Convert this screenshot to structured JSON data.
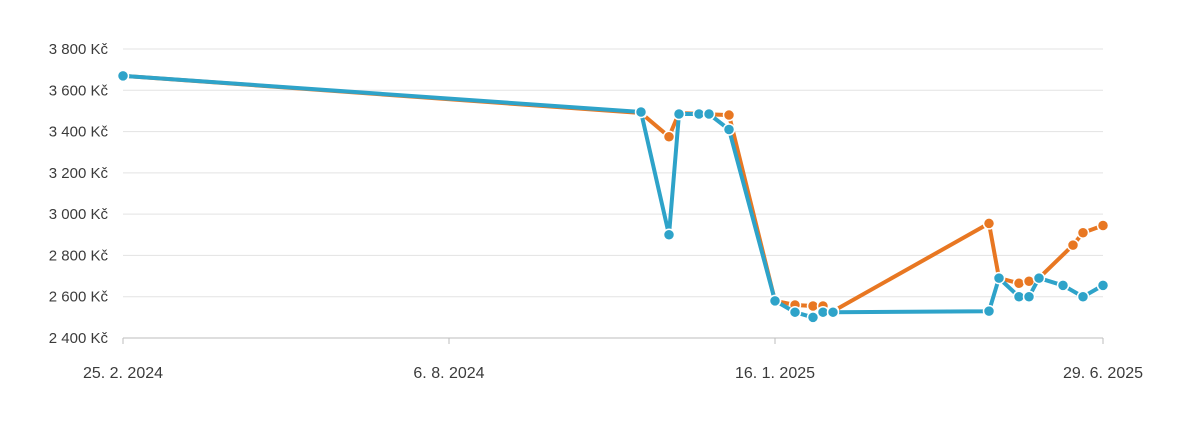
{
  "chart_data": {
    "type": "line",
    "title": "",
    "xlabel": "",
    "ylabel": "",
    "x_axis": {
      "type": "date",
      "range": [
        "2024-02-25",
        "2025-06-29"
      ],
      "ticks": [
        {
          "date": "2024-02-25",
          "label": "25. 2. 2024"
        },
        {
          "date": "2024-08-06",
          "label": "6. 8. 2024"
        },
        {
          "date": "2025-01-16",
          "label": "16. 1. 2025"
        },
        {
          "date": "2025-06-29",
          "label": "29. 6. 2025"
        }
      ]
    },
    "y_axis": {
      "range": [
        2400,
        3800
      ],
      "ticks": [
        {
          "value": 2400,
          "label": "2 400 Kč"
        },
        {
          "value": 2600,
          "label": "2 600 Kč"
        },
        {
          "value": 2800,
          "label": "2 800 Kč"
        },
        {
          "value": 3000,
          "label": "3 000 Kč"
        },
        {
          "value": 3200,
          "label": "3 200 Kč"
        },
        {
          "value": 3400,
          "label": "3 400 Kč"
        },
        {
          "value": 3600,
          "label": "3 600 Kč"
        },
        {
          "value": 3800,
          "label": "3 800 Kč"
        }
      ]
    },
    "grid": true,
    "legend": "none",
    "series": [
      {
        "color": "#e87722",
        "points": [
          {
            "x": "2024-02-25",
            "y": 3670
          },
          {
            "x": "2024-11-10",
            "y": 3490
          },
          {
            "x": "2024-11-24",
            "y": 3375
          },
          {
            "x": "2024-11-29",
            "y": 3490
          },
          {
            "x": "2024-12-24",
            "y": 3480
          },
          {
            "x": "2025-01-16",
            "y": 2580
          },
          {
            "x": "2025-01-26",
            "y": 2560
          },
          {
            "x": "2025-02-04",
            "y": 2555
          },
          {
            "x": "2025-02-09",
            "y": 2555
          },
          {
            "x": "2025-02-14",
            "y": 2530
          },
          {
            "x": "2025-05-03",
            "y": 2955
          },
          {
            "x": "2025-05-08",
            "y": 2690
          },
          {
            "x": "2025-05-18",
            "y": 2665
          },
          {
            "x": "2025-05-23",
            "y": 2675
          },
          {
            "x": "2025-05-28",
            "y": 2690
          },
          {
            "x": "2025-06-14",
            "y": 2850
          },
          {
            "x": "2025-06-19",
            "y": 2910
          },
          {
            "x": "2025-06-29",
            "y": 2945
          }
        ]
      },
      {
        "color": "#2ea3c9",
        "points": [
          {
            "x": "2024-02-25",
            "y": 3670
          },
          {
            "x": "2024-11-10",
            "y": 3495
          },
          {
            "x": "2024-11-24",
            "y": 2900
          },
          {
            "x": "2024-11-29",
            "y": 3485
          },
          {
            "x": "2024-12-09",
            "y": 3485
          },
          {
            "x": "2024-12-14",
            "y": 3485
          },
          {
            "x": "2024-12-24",
            "y": 3410
          },
          {
            "x": "2025-01-16",
            "y": 2580
          },
          {
            "x": "2025-01-26",
            "y": 2525
          },
          {
            "x": "2025-02-04",
            "y": 2500
          },
          {
            "x": "2025-02-09",
            "y": 2525
          },
          {
            "x": "2025-02-14",
            "y": 2525
          },
          {
            "x": "2025-05-03",
            "y": 2530
          },
          {
            "x": "2025-05-08",
            "y": 2690
          },
          {
            "x": "2025-05-18",
            "y": 2600
          },
          {
            "x": "2025-05-23",
            "y": 2600
          },
          {
            "x": "2025-05-28",
            "y": 2690
          },
          {
            "x": "2025-06-09",
            "y": 2655
          },
          {
            "x": "2025-06-19",
            "y": 2600
          },
          {
            "x": "2025-06-29",
            "y": 2655
          }
        ]
      }
    ]
  }
}
